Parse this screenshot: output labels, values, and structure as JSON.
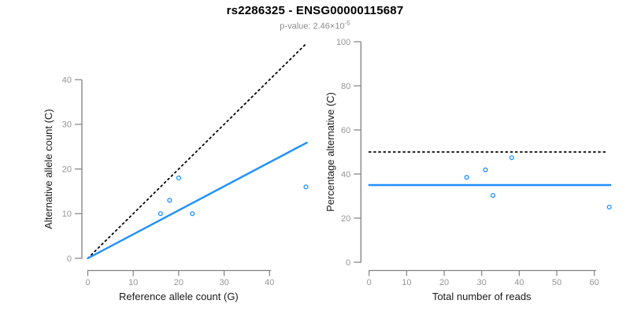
{
  "header": {
    "title": "rs2286325 - ENSG00000115687",
    "subtitle_main": "p-value: 2.46×10",
    "subtitle_exponent": "-5"
  },
  "colors": {
    "blue": "#1E90FF",
    "black": "#000000",
    "axis": "#808080",
    "tick_label": "#969696",
    "axis_label": "#1a1a1a",
    "subtitle": "#8c8c8c"
  },
  "chart_data": [
    {
      "type": "scatter",
      "panel": "allele-counts",
      "xlabel": "Reference allele count (G)",
      "ylabel": "Alternative allele count (C)",
      "xticks": [
        0,
        10,
        20,
        30,
        40
      ],
      "yticks": [
        0,
        10,
        20,
        30,
        40
      ],
      "xlim": [
        0,
        48.5
      ],
      "ylim": [
        0,
        48.5
      ],
      "grid": false,
      "legend": "none",
      "points": [
        {
          "x": 16,
          "y": 10
        },
        {
          "x": 18,
          "y": 13
        },
        {
          "x": 20,
          "y": 18
        },
        {
          "x": 23,
          "y": 10
        },
        {
          "x": 48,
          "y": 16
        }
      ],
      "lines": [
        {
          "name": "identity-line",
          "style": "dotted",
          "color": "black",
          "x1": 0,
          "y1": 0,
          "x2": 48.2,
          "y2": 48.2
        },
        {
          "name": "fitted-ratio-line",
          "style": "solid",
          "color": "blue",
          "x1": 0,
          "y1": 0,
          "x2": 48.2,
          "y2": 25.9
        }
      ]
    },
    {
      "type": "scatter",
      "panel": "percentage-alternative",
      "xlabel": "Total number of reads",
      "ylabel": "Percentage alternative (C)",
      "xticks": [
        0,
        10,
        20,
        30,
        40,
        50,
        60
      ],
      "yticks": [
        0,
        20,
        40,
        60,
        80,
        100
      ],
      "xlim": [
        0,
        64.5
      ],
      "ylim": [
        0,
        100
      ],
      "grid": false,
      "legend": "none",
      "points": [
        {
          "x": 26,
          "y": 38.5
        },
        {
          "x": 31,
          "y": 41.9
        },
        {
          "x": 38,
          "y": 47.4
        },
        {
          "x": 33,
          "y": 30.3
        },
        {
          "x": 64,
          "y": 25.0
        }
      ],
      "lines": [
        {
          "name": "null-50-percent-line",
          "style": "dotted",
          "color": "black",
          "x1": 0,
          "y1": 50,
          "x2": 63,
          "y2": 50
        },
        {
          "name": "estimated-percentage-line",
          "style": "solid",
          "color": "blue",
          "x1": 0,
          "y1": 35,
          "x2": 64.3,
          "y2": 35
        }
      ]
    }
  ]
}
